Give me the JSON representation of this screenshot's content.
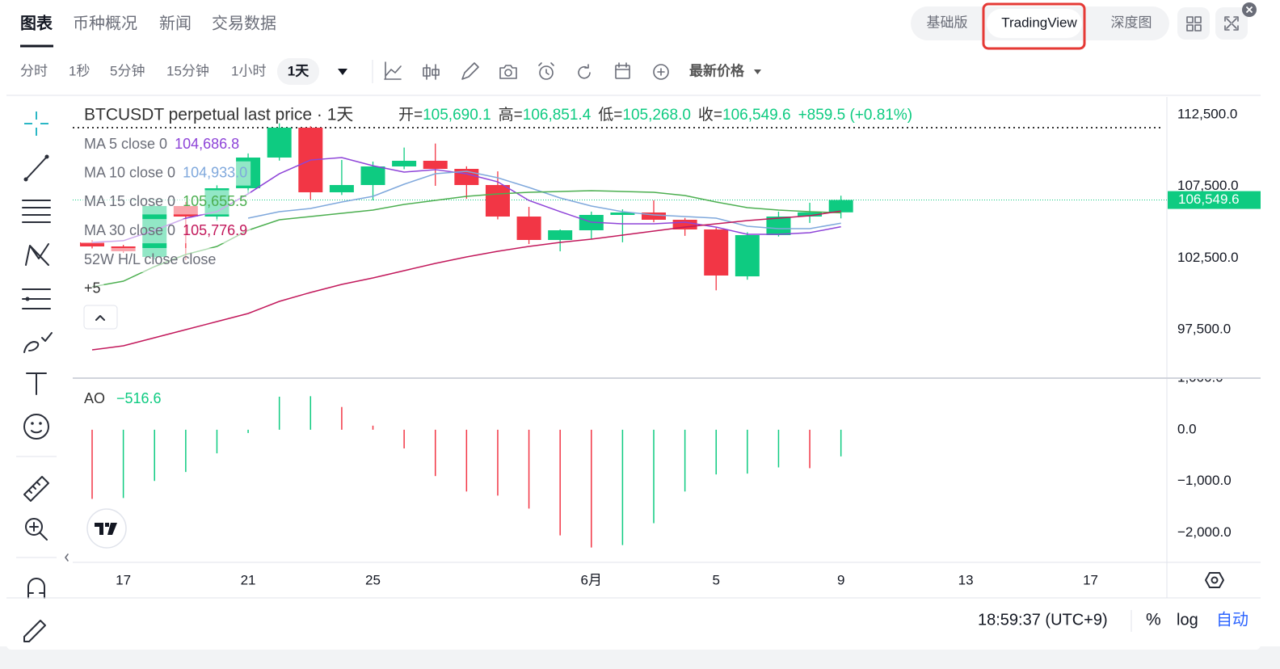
{
  "header": {
    "tabs": [
      "图表",
      "币种概况",
      "新闻",
      "交易数据"
    ],
    "views": [
      "基础版",
      "TradingView",
      "深度图"
    ]
  },
  "toolbar": {
    "intervals": [
      "分时",
      "1秒",
      "5分钟",
      "15分钟",
      "1小时",
      "1天"
    ],
    "price_type": "最新价格"
  },
  "chart_data": [
    {
      "type": "candlestick",
      "title": "BTCUSDT perpetual last price · 1天",
      "ohlc_legend": [
        {
          "label": "开=",
          "value": "105,690.1"
        },
        {
          "label": "高=",
          "value": "106,851.4"
        },
        {
          "label": "低=",
          "value": "105,268.0"
        },
        {
          "label": "收=",
          "value": "106,549.6"
        }
      ],
      "change": "+859.5 (+0.81%)",
      "x": [
        "05-16",
        "05-17",
        "05-18",
        "05-19",
        "05-20",
        "05-21",
        "05-22",
        "05-23",
        "05-24",
        "05-25",
        "05-26",
        "05-27",
        "05-28",
        "05-29",
        "05-30",
        "05-31",
        "06-01",
        "06-02",
        "06-03",
        "06-04",
        "06-05",
        "06-06",
        "06-07",
        "06-08",
        "06-09"
      ],
      "open": [
        103594,
        103312,
        102579,
        106130,
        105397,
        107370,
        109512,
        111598,
        107089,
        107596,
        108892,
        109287,
        108723,
        107596,
        105397,
        103763,
        104439,
        105510,
        105679,
        105172,
        104496,
        101225,
        104101,
        105397,
        105690.1
      ],
      "high": [
        103760,
        103420,
        106300,
        106412,
        107600,
        109800,
        111900,
        111700,
        109343,
        109230,
        110210,
        110490,
        108900,
        108550,
        106070,
        104500,
        105740,
        105900,
        106530,
        105300,
        104600,
        104300,
        105740,
        106360,
        106851.4
      ],
      "low": [
        103140,
        102860,
        102400,
        102353,
        105100,
        107000,
        109300,
        106581,
        106900,
        106530,
        108700,
        107540,
        106640,
        105200,
        103480,
        102970,
        103820,
        103600,
        105000,
        104050,
        100250,
        100990,
        104000,
        104950,
        105268.0
      ],
      "close": [
        103312,
        102974,
        106130,
        105397,
        107370,
        109512,
        111598,
        107089,
        107596,
        108892,
        109287,
        108723,
        107596,
        105397,
        103763,
        104439,
        105510,
        105679,
        105172,
        104496,
        101282,
        104101,
        105397,
        105690.1,
        106549.6
      ],
      "up_color": "#0ecb81",
      "down_color": "#f23645",
      "indicators": [
        {
          "name": "MA 5 close 0",
          "color": "#8e44d8",
          "last_label": "104,686.8",
          "values": [
            103590,
            103710,
            104440,
            105280,
            105740,
            106980,
            108380,
            109340,
            109510,
            108940,
            108500,
            108670,
            108380,
            107820,
            106520,
            105740,
            105000,
            104890,
            104890,
            105000,
            104660,
            104160,
            104160,
            104270,
            104686.8
          ]
        },
        {
          "name": "MA 10 close 0",
          "color": "#7fa8dc",
          "last_label": "104,933.0",
          "values": [
            null,
            null,
            null,
            null,
            null,
            105285,
            105736,
            105961,
            106412,
            106807,
            107652,
            108385,
            108554,
            108103,
            107427,
            106694,
            106130,
            105736,
            105511,
            105398,
            105285,
            104721,
            104552,
            104552,
            104933.0
          ]
        },
        {
          "name": "MA 15 close 0",
          "color": "#4caf50",
          "last_label": "105,655.5",
          "values": [
            100493,
            100888,
            101903,
            102748,
            103312,
            104439,
            105172,
            105397,
            105623,
            105848,
            106243,
            106525,
            106807,
            106976,
            107089,
            107145,
            107201,
            107145,
            107089,
            106863,
            106412,
            106018,
            105848,
            105736,
            105655.5
          ]
        },
        {
          "name": "MA 30 close 0",
          "color": "#c2185b",
          "last_label": "105,776.9",
          "values": [
            96096,
            96378,
            96942,
            97506,
            98069,
            98633,
            99479,
            100099,
            100663,
            101113,
            101621,
            102128,
            102579,
            102974,
            103312,
            103594,
            103819,
            104101,
            104383,
            104665,
            104890,
            105116,
            105285,
            105454,
            105776.9
          ]
        }
      ],
      "extra_legend": [
        "52W H/L close close",
        "+5"
      ],
      "high_52w": 111600,
      "last_price": {
        "value": 106549.6,
        "label": "106,549.6"
      },
      "xlim": [
        "05-15",
        "06-20"
      ],
      "xticks": [
        {
          "value": "05-17",
          "label": "17"
        },
        {
          "value": "05-21",
          "label": "21"
        },
        {
          "value": "05-25",
          "label": "25"
        },
        {
          "value": "06-01",
          "label": "6月"
        },
        {
          "value": "06-05",
          "label": "5"
        },
        {
          "value": "06-09",
          "label": "9"
        },
        {
          "value": "06-13",
          "label": "13"
        },
        {
          "value": "06-17",
          "label": "17"
        }
      ],
      "ylim": [
        94180,
        113740
      ],
      "yticks": [
        {
          "value": 112500,
          "label": "112,500.0"
        },
        {
          "value": 107500,
          "label": "107,500.0"
        },
        {
          "value": 102500,
          "label": "102,500.0"
        },
        {
          "value": 97500,
          "label": "97,500.0"
        }
      ]
    },
    {
      "type": "bar",
      "title": "AO",
      "value_label": "−516.6",
      "x": [
        "05-16",
        "05-17",
        "05-18",
        "05-19",
        "05-20",
        "05-21",
        "05-22",
        "05-23",
        "05-24",
        "05-25",
        "05-26",
        "05-27",
        "05-28",
        "05-29",
        "05-30",
        "05-31",
        "06-01",
        "06-02",
        "06-03",
        "06-04",
        "06-05",
        "06-06",
        "06-07",
        "06-08",
        "06-09"
      ],
      "values": [
        -1340,
        -1323,
        -992,
        -819,
        -457,
        -63,
        640,
        650,
        441,
        79,
        -362,
        -898,
        -1197,
        -1276,
        -1528,
        -2047,
        -2283,
        -2236,
        -1811,
        -1197,
        -866,
        -850,
        -730,
        -745,
        -516.6
      ],
      "up_color": "#0ecb81",
      "down_color": "#f23645",
      "ylim": [
        -2570,
        1000
      ],
      "yticks": [
        {
          "value": 1000,
          "label": "1,000.0"
        },
        {
          "value": 0,
          "label": "0.0"
        },
        {
          "value": -1000,
          "label": "−1,000.0"
        },
        {
          "value": -2000,
          "label": "−2,000.0"
        }
      ]
    }
  ],
  "footer": {
    "time": "18:59:37 (UTC+9)",
    "percent": "%",
    "log": "log",
    "auto": "自动"
  }
}
